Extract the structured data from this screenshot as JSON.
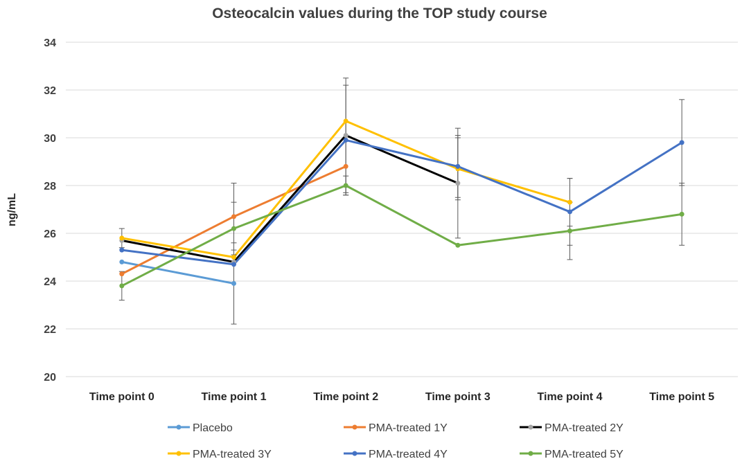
{
  "chart_data": {
    "type": "line",
    "title": "Osteocalcin values during the TOP study course",
    "xlabel": "",
    "ylabel": "ng/mL",
    "ylim": [
      20,
      34
    ],
    "yticks": [
      20,
      22,
      24,
      26,
      28,
      30,
      32,
      34
    ],
    "ytick_labels": [
      "20",
      "22",
      "24",
      "26",
      "28",
      "30",
      "32",
      "34"
    ],
    "grid": true,
    "legend_position": "bottom",
    "categories": [
      "Time point 0",
      "Time point 1",
      "Time point 2",
      "Time point 3",
      "Time point 4",
      "Time point 5"
    ],
    "series": [
      {
        "name": "Placebo",
        "color": "#5B9BD5",
        "values": [
          24.8,
          23.9,
          null,
          null,
          null,
          null
        ],
        "error": [
          null,
          1.7,
          null,
          null,
          null,
          null
        ]
      },
      {
        "name": "PMA-treated 1Y",
        "color": "#ED7D31",
        "values": [
          24.3,
          26.7,
          28.8,
          null,
          null,
          null
        ],
        "error": [
          null,
          1.4,
          null,
          null,
          null,
          null
        ]
      },
      {
        "name": "PMA-treated 2Y",
        "color": "#000000",
        "marker_color": "#A5A5A5",
        "values": [
          25.7,
          24.8,
          30.1,
          28.1,
          null,
          null
        ],
        "error": [
          null,
          null,
          2.4,
          2.3,
          null,
          null
        ]
      },
      {
        "name": "PMA-treated 3Y",
        "color": "#FFC000",
        "values": [
          25.8,
          25.0,
          30.7,
          28.7,
          27.3,
          null
        ],
        "error": [
          0.4,
          null,
          null,
          1.3,
          1.0,
          null
        ]
      },
      {
        "name": "PMA-treated 4Y",
        "color": "#4472C4",
        "values": [
          25.3,
          24.7,
          29.9,
          28.8,
          26.9,
          29.8
        ],
        "error": [
          null,
          null,
          2.3,
          1.3,
          1.4,
          1.8
        ]
      },
      {
        "name": "PMA-treated 5Y",
        "color": "#70AD47",
        "values": [
          23.8,
          26.2,
          28.0,
          25.5,
          26.1,
          26.8
        ],
        "error": [
          0.6,
          1.1,
          0.4,
          null,
          1.2,
          1.3
        ]
      }
    ]
  }
}
